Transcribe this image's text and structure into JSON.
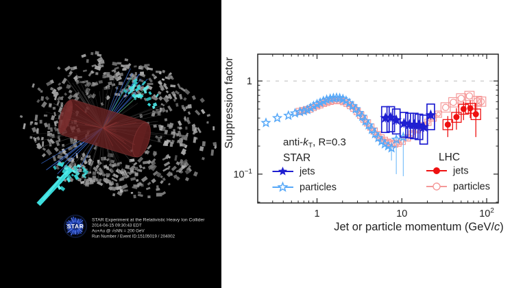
{
  "left_panel": {
    "logo_text": "STAR",
    "caption_lines": [
      "STAR Experiment at the Relativistic Heavy Ion Collider",
      "2014-04-15 09:30:43 EDT",
      "Au+Au @ √sNN = 200 GeV",
      "Run Number / Event ID:15105019 / 204002"
    ],
    "colors": {
      "background": "#000000",
      "towers": "#9a9a9a",
      "jet_towers": "#3fdede",
      "tpc_cylinder": "#6d2323",
      "tracks_blue": "#3b6fd8",
      "logo_blue": "#2f55d4"
    }
  },
  "chart_data": {
    "type": "scatter",
    "title": "",
    "xlabel": "Jet or particle momentum (GeV/c)",
    "ylabel": "Suppression factor",
    "xscale": "log",
    "yscale": "log",
    "xlim": [
      0.2,
      137
    ],
    "ylim": [
      0.049,
      1.94
    ],
    "grid": false,
    "reference_line": {
      "y": 1,
      "style": "dashed",
      "color": "#bbbbbb"
    },
    "x_ticks": [
      1,
      10,
      100
    ],
    "x_tick_labels": [
      "1",
      "10",
      "10^2"
    ],
    "y_ticks": [
      1,
      0.1
    ],
    "y_tick_labels": [
      "1",
      "10^−1"
    ],
    "annotation": "anti-kT, R=0.3",
    "legend": {
      "groups": [
        {
          "title": "STAR",
          "items": [
            {
              "label": "jets",
              "marker": "star-filled",
              "color": "#1f1fd1"
            },
            {
              "label": "particles",
              "marker": "star-open",
              "color": "#56a8f8"
            }
          ]
        },
        {
          "title": "LHC",
          "items": [
            {
              "label": "jets",
              "marker": "circle-filled",
              "color": "#ee1111"
            },
            {
              "label": "particles",
              "marker": "circle-open",
              "color": "#f59898"
            }
          ]
        }
      ]
    },
    "series": [
      {
        "name": "STAR particles",
        "marker": "star-open",
        "color": "#56a8f8",
        "points": [
          [
            0.25,
            0.355
          ],
          [
            0.34,
            0.4
          ],
          [
            0.46,
            0.425
          ],
          [
            0.55,
            0.45
          ],
          [
            0.63,
            0.465
          ],
          [
            0.7,
            0.475
          ],
          [
            0.77,
            0.49
          ],
          [
            0.84,
            0.515
          ],
          [
            0.91,
            0.54
          ],
          [
            1.0,
            0.565
          ],
          [
            1.09,
            0.585
          ],
          [
            1.19,
            0.61
          ],
          [
            1.3,
            0.63
          ],
          [
            1.43,
            0.645
          ],
          [
            1.56,
            0.655
          ],
          [
            1.7,
            0.66
          ],
          [
            1.85,
            0.655
          ],
          [
            2.02,
            0.64
          ],
          [
            2.2,
            0.615
          ],
          [
            2.4,
            0.58
          ],
          [
            2.62,
            0.54
          ],
          [
            2.86,
            0.5
          ],
          [
            3.12,
            0.455
          ],
          [
            3.41,
            0.415
          ],
          [
            3.72,
            0.37
          ],
          [
            4.06,
            0.335
          ],
          [
            4.43,
            0.3
          ],
          [
            4.84,
            0.27
          ],
          [
            5.28,
            0.245
          ],
          [
            5.77,
            0.225
          ],
          [
            6.3,
            0.21
          ],
          [
            6.9,
            0.2
          ],
          [
            7.55,
            0.19,
            0.14,
            0.22
          ],
          [
            8.6,
            0.235,
            0.1,
            0.27
          ],
          [
            10.4,
            0.25,
            0.095,
            0.285
          ]
        ]
      },
      {
        "name": "LHC particles",
        "marker": "circle-open",
        "color": "#f59898",
        "points": [
          [
            0.62,
            0.47
          ],
          [
            0.68,
            0.48
          ],
          [
            0.75,
            0.49
          ],
          [
            0.82,
            0.5
          ],
          [
            0.9,
            0.52
          ],
          [
            0.99,
            0.54
          ],
          [
            1.08,
            0.555
          ],
          [
            1.19,
            0.575
          ],
          [
            1.3,
            0.59
          ],
          [
            1.43,
            0.605
          ],
          [
            1.57,
            0.615
          ],
          [
            1.72,
            0.62
          ],
          [
            1.88,
            0.615
          ],
          [
            2.06,
            0.6
          ],
          [
            2.26,
            0.575
          ],
          [
            2.48,
            0.545
          ],
          [
            2.72,
            0.51
          ],
          [
            2.98,
            0.47
          ],
          [
            3.27,
            0.43
          ],
          [
            3.58,
            0.39
          ],
          [
            3.93,
            0.355
          ],
          [
            4.31,
            0.32
          ],
          [
            4.72,
            0.29
          ],
          [
            5.18,
            0.265
          ],
          [
            5.68,
            0.245
          ],
          [
            6.23,
            0.23
          ],
          [
            6.83,
            0.22
          ],
          [
            7.49,
            0.215
          ],
          [
            8.21,
            0.21
          ],
          [
            9.0,
            0.215
          ],
          [
            10.1,
            0.225
          ],
          [
            11.6,
            0.245
          ],
          [
            13.3,
            0.27
          ],
          [
            15.3,
            0.3
          ],
          [
            17.6,
            0.33
          ],
          [
            20.3,
            0.36
          ],
          [
            23.4,
            0.4
          ],
          [
            27.0,
            0.44
          ],
          [
            32.8,
            0.52
          ],
          [
            40.5,
            0.59
          ],
          [
            50.0,
            0.65
          ],
          [
            62.6,
            0.69
          ],
          [
            77.0,
            0.61,
            0.47,
            0.66
          ],
          [
            86.0,
            0.6,
            0.52,
            0.65
          ]
        ]
      },
      {
        "name": "STAR jets",
        "marker": "star-filled",
        "color": "#1f1fd1",
        "points_format": [
          "x",
          "y",
          "stat_lo",
          "stat_hi",
          "sys_lo",
          "sys_hi"
        ],
        "points": [
          [
            6.4,
            0.4,
            0.36,
            0.44,
            0.28,
            0.53
          ],
          [
            7.4,
            0.405,
            0.365,
            0.445,
            0.285,
            0.53
          ],
          [
            8.6,
            0.38,
            0.34,
            0.42,
            0.27,
            0.5
          ],
          [
            10.6,
            0.35,
            0.315,
            0.385,
            0.25,
            0.46
          ],
          [
            12.3,
            0.34,
            0.305,
            0.375,
            0.245,
            0.45
          ],
          [
            14.0,
            0.34,
            0.305,
            0.375,
            0.24,
            0.45
          ],
          [
            15.9,
            0.335,
            0.3,
            0.37,
            0.235,
            0.44
          ],
          [
            18.1,
            0.32,
            0.285,
            0.355,
            0.21,
            0.43
          ],
          [
            21.9,
            0.43,
            0.385,
            0.475,
            0.3,
            0.565
          ]
        ]
      },
      {
        "name": "LHC jets",
        "marker": "circle-filled",
        "color": "#ee1111",
        "points_format": [
          "x",
          "y",
          "stat_lo",
          "stat_hi",
          "sys_lo",
          "sys_hi"
        ],
        "points": [
          [
            34.8,
            0.34,
            0.25,
            0.42,
            0.3,
            0.385
          ],
          [
            44.0,
            0.41,
            0.3,
            0.51,
            0.36,
            0.46
          ],
          [
            53.4,
            0.5,
            0.38,
            0.6,
            0.44,
            0.56
          ],
          [
            64.0,
            0.51,
            0.4,
            0.62,
            0.45,
            0.575
          ],
          [
            74.5,
            0.44,
            0.25,
            0.58,
            0.385,
            0.5
          ]
        ]
      }
    ]
  }
}
